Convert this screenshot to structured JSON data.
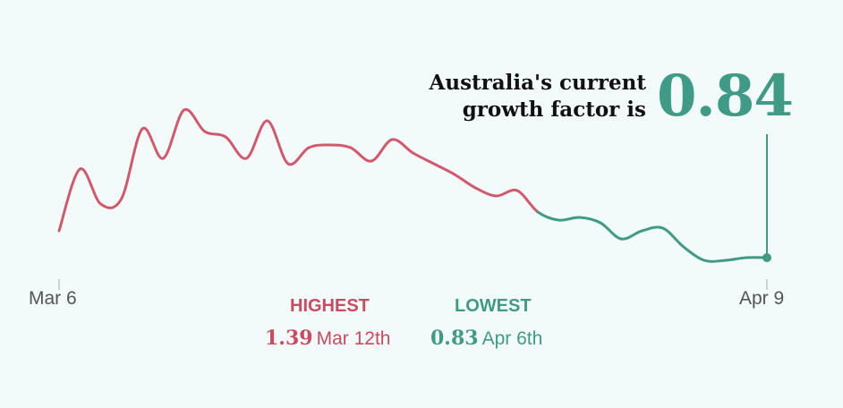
{
  "callout": {
    "line1": "Australia's current",
    "line2": "growth factor is",
    "value": "0.84"
  },
  "stats": {
    "highest_label": "HIGHEST",
    "highest_value": "1.39",
    "highest_date": "Mar 12th",
    "lowest_label": "LOWEST",
    "lowest_value": "0.83",
    "lowest_date": "Apr 6th"
  },
  "colors": {
    "above_one": "#d1596d",
    "below_one": "#3f9b86",
    "background": "#f3fbfa"
  },
  "chart_data": {
    "type": "line",
    "title": "",
    "xlabel": "",
    "ylabel": "",
    "x_tick_labels": [
      "Mar 6",
      "Apr 9"
    ],
    "x": [
      "Mar 6",
      "Mar 7",
      "Mar 8",
      "Mar 9",
      "Mar 10",
      "Mar 11",
      "Mar 12",
      "Mar 13",
      "Mar 14",
      "Mar 15",
      "Mar 16",
      "Mar 17",
      "Mar 18",
      "Mar 19",
      "Mar 20",
      "Mar 21",
      "Mar 22",
      "Mar 23",
      "Mar 24",
      "Mar 25",
      "Mar 26",
      "Mar 27",
      "Mar 28",
      "Mar 29",
      "Mar 30",
      "Mar 31",
      "Apr 1",
      "Apr 2",
      "Apr 3",
      "Apr 4",
      "Apr 5",
      "Apr 6",
      "Apr 7",
      "Apr 8",
      "Apr 9"
    ],
    "series": [
      {
        "values": [
          0.94,
          1.17,
          1.04,
          1.06,
          1.32,
          1.21,
          1.39,
          1.31,
          1.29,
          1.21,
          1.35,
          1.19,
          1.25,
          1.26,
          1.25,
          1.2,
          1.28,
          1.23,
          1.19,
          1.15,
          1.1,
          1.07,
          1.09,
          1.01,
          0.98,
          0.99,
          0.97,
          0.91,
          0.94,
          0.95,
          0.88,
          0.83,
          0.83,
          0.84,
          0.84
        ]
      }
    ],
    "threshold": 1.0,
    "ylim": [
      0.8,
      1.45
    ],
    "grid": false,
    "legend": "none"
  }
}
